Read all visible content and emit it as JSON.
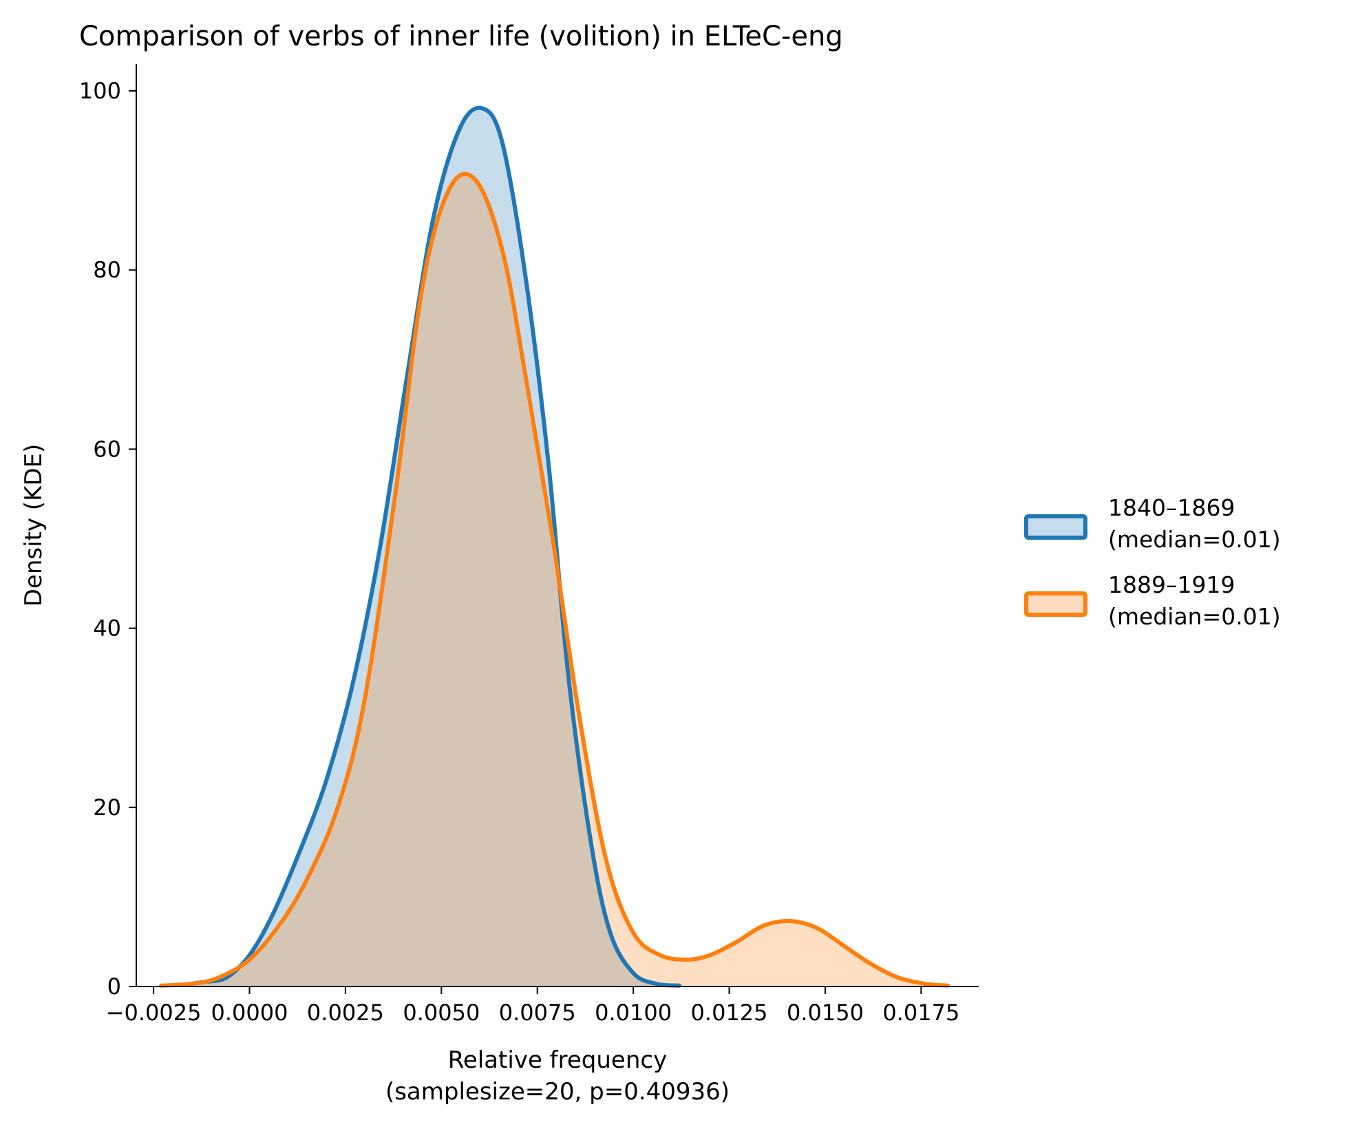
{
  "chart_data": {
    "type": "area",
    "title": "Comparison of verbs of inner life (volition) in ELTeC-eng",
    "xlabel_line1": "Relative frequency",
    "xlabel_line2": "(samplesize=20, p=0.40936)",
    "ylabel": "Density (KDE)",
    "xlim": [
      -0.00295,
      0.019
    ],
    "ylim": [
      0,
      103
    ],
    "x_ticks": [
      -0.0025,
      0.0,
      0.0025,
      0.005,
      0.0075,
      0.01,
      0.0125,
      0.015,
      0.0175
    ],
    "x_tick_labels": [
      "−0.0025",
      "0.0000",
      "0.0025",
      "0.0050",
      "0.0075",
      "0.0100",
      "0.0125",
      "0.0150",
      "0.0175"
    ],
    "y_ticks": [
      0,
      20,
      40,
      60,
      80,
      100
    ],
    "y_tick_labels": [
      "0",
      "20",
      "40",
      "60",
      "80",
      "100"
    ],
    "grid": false,
    "legend_position": "right (outside plot)",
    "series": [
      {
        "label_line1": "1840–1869",
        "label_line2": "(median=0.01)",
        "color": "#1f77b4",
        "fill": "#c6dbec",
        "x": [
          -0.0017,
          -0.0012,
          -0.0006,
          0.0,
          0.0006,
          0.0013,
          0.002,
          0.0027,
          0.0034,
          0.0041,
          0.0048,
          0.0055,
          0.0061,
          0.0066,
          0.0072,
          0.0078,
          0.0083,
          0.0089,
          0.0094,
          0.01,
          0.0106,
          0.0112
        ],
        "y": [
          0.2,
          0.5,
          1.0,
          3.5,
          8,
          15,
          23,
          34,
          49,
          68,
          86,
          96,
          98,
          94,
          79,
          58,
          35,
          16,
          6,
          1.5,
          0.3,
          0.1
        ]
      },
      {
        "label_line1": "1889–1919",
        "label_line2": "(median=0.01)",
        "color": "#ff7f0e",
        "fill": "#ffdcbf",
        "x": [
          -0.0023,
          -0.0015,
          -0.0008,
          0.0,
          0.0008,
          0.0015,
          0.0023,
          0.003,
          0.0038,
          0.0045,
          0.0052,
          0.0059,
          0.0066,
          0.0072,
          0.0079,
          0.0086,
          0.0093,
          0.01,
          0.0107,
          0.0114,
          0.012,
          0.0127,
          0.0134,
          0.0141,
          0.0148,
          0.0155,
          0.0162,
          0.0169,
          0.0176,
          0.0182
        ],
        "y": [
          0.1,
          0.3,
          1.0,
          3.0,
          7,
          12,
          20,
          32,
          55,
          78,
          89,
          90,
          82,
          68,
          50,
          30,
          14,
          6,
          3.5,
          3.0,
          3.5,
          5,
          6.8,
          7.3,
          6.5,
          4.5,
          2.5,
          1.0,
          0.3,
          0.1
        ]
      }
    ]
  }
}
